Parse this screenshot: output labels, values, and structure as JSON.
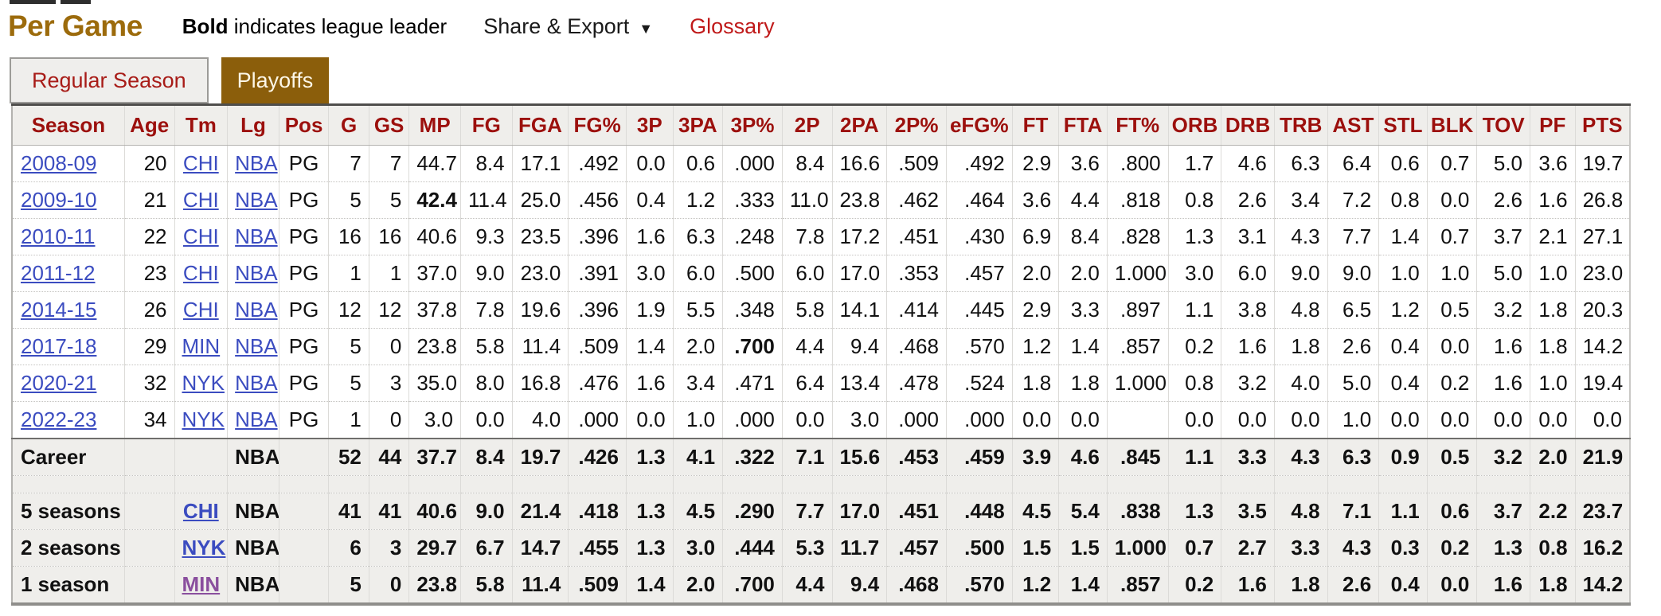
{
  "page": {
    "title": "Per Game",
    "note": {
      "bold": "Bold",
      "rest": " indicates league leader"
    },
    "share_export": {
      "label": "Share & Export",
      "caret": "▼"
    },
    "glossary": "Glossary"
  },
  "tabs": {
    "regular_season": {
      "label": "Regular Season",
      "active": false
    },
    "playoffs": {
      "label": "Playoffs",
      "active": true
    }
  },
  "colors": {
    "title_gold": "#9c6b0c",
    "playoffs_tab_brown": "#8b5e0b",
    "header_red": "#9c100d",
    "tab_text_red": "#a81c18",
    "glossary_red": "#c01a1a",
    "link_blue": "#3b4cc0",
    "link_visited_purple": "#8a4f9e",
    "row_gray": "#efeeeb"
  },
  "table": {
    "columns": [
      "Season",
      "Age",
      "Tm",
      "Lg",
      "Pos",
      "G",
      "GS",
      "MP",
      "FG",
      "FGA",
      "FG%",
      "3P",
      "3PA",
      "3P%",
      "2P",
      "2PA",
      "2P%",
      "eFG%",
      "FT",
      "FTA",
      "FT%",
      "ORB",
      "DRB",
      "TRB",
      "AST",
      "STL",
      "BLK",
      "TOV",
      "PF",
      "PTS"
    ],
    "rows": [
      {
        "type": "data",
        "cells": [
          {
            "t": "2008-09",
            "link": "blue"
          },
          "20",
          {
            "t": "CHI",
            "link": "blue"
          },
          {
            "t": "NBA",
            "link": "blue"
          },
          "PG",
          "7",
          "7",
          "44.7",
          "8.4",
          "17.1",
          ".492",
          "0.0",
          "0.6",
          ".000",
          "8.4",
          "16.6",
          ".509",
          ".492",
          "2.9",
          "3.6",
          ".800",
          "1.7",
          "4.6",
          "6.3",
          "6.4",
          "0.6",
          "0.7",
          "5.0",
          "3.6",
          "19.7"
        ]
      },
      {
        "type": "data",
        "cells": [
          {
            "t": "2009-10",
            "link": "blue"
          },
          "21",
          {
            "t": "CHI",
            "link": "blue"
          },
          {
            "t": "NBA",
            "link": "blue"
          },
          "PG",
          "5",
          "5",
          {
            "t": "42.4",
            "b": 1
          },
          "11.4",
          "25.0",
          ".456",
          "0.4",
          "1.2",
          ".333",
          "11.0",
          "23.8",
          ".462",
          ".464",
          "3.6",
          "4.4",
          ".818",
          "0.8",
          "2.6",
          "3.4",
          "7.2",
          "0.8",
          "0.0",
          "2.6",
          "1.6",
          "26.8"
        ]
      },
      {
        "type": "data",
        "cells": [
          {
            "t": "2010-11",
            "link": "blue"
          },
          "22",
          {
            "t": "CHI",
            "link": "blue"
          },
          {
            "t": "NBA",
            "link": "blue"
          },
          "PG",
          "16",
          "16",
          "40.6",
          "9.3",
          "23.5",
          ".396",
          "1.6",
          "6.3",
          ".248",
          "7.8",
          "17.2",
          ".451",
          ".430",
          "6.9",
          "8.4",
          ".828",
          "1.3",
          "3.1",
          "4.3",
          "7.7",
          "1.4",
          "0.7",
          "3.7",
          "2.1",
          "27.1"
        ]
      },
      {
        "type": "data",
        "cells": [
          {
            "t": "2011-12",
            "link": "blue"
          },
          "23",
          {
            "t": "CHI",
            "link": "blue"
          },
          {
            "t": "NBA",
            "link": "blue"
          },
          "PG",
          "1",
          "1",
          "37.0",
          "9.0",
          "23.0",
          ".391",
          "3.0",
          "6.0",
          ".500",
          "6.0",
          "17.0",
          ".353",
          ".457",
          "2.0",
          "2.0",
          "1.000",
          "3.0",
          "6.0",
          "9.0",
          "9.0",
          "1.0",
          "1.0",
          "5.0",
          "1.0",
          "23.0"
        ]
      },
      {
        "type": "data",
        "cells": [
          {
            "t": "2014-15",
            "link": "blue"
          },
          "26",
          {
            "t": "CHI",
            "link": "blue"
          },
          {
            "t": "NBA",
            "link": "blue"
          },
          "PG",
          "12",
          "12",
          "37.8",
          "7.8",
          "19.6",
          ".396",
          "1.9",
          "5.5",
          ".348",
          "5.8",
          "14.1",
          ".414",
          ".445",
          "2.9",
          "3.3",
          ".897",
          "1.1",
          "3.8",
          "4.8",
          "6.5",
          "1.2",
          "0.5",
          "3.2",
          "1.8",
          "20.3"
        ]
      },
      {
        "type": "data",
        "cells": [
          {
            "t": "2017-18",
            "link": "blue"
          },
          "29",
          {
            "t": "MIN",
            "link": "blue"
          },
          {
            "t": "NBA",
            "link": "blue"
          },
          "PG",
          "5",
          "0",
          "23.8",
          "5.8",
          "11.4",
          ".509",
          "1.4",
          "2.0",
          {
            "t": ".700",
            "b": 1
          },
          "4.4",
          "9.4",
          ".468",
          ".570",
          "1.2",
          "1.4",
          ".857",
          "0.2",
          "1.6",
          "1.8",
          "2.6",
          "0.4",
          "0.0",
          "1.6",
          "1.8",
          "14.2"
        ]
      },
      {
        "type": "data",
        "cells": [
          {
            "t": "2020-21",
            "link": "blue"
          },
          "32",
          {
            "t": "NYK",
            "link": "blue"
          },
          {
            "t": "NBA",
            "link": "blue"
          },
          "PG",
          "5",
          "3",
          "35.0",
          "8.0",
          "16.8",
          ".476",
          "1.6",
          "3.4",
          ".471",
          "6.4",
          "13.4",
          ".478",
          ".524",
          "1.8",
          "1.8",
          "1.000",
          "0.8",
          "3.2",
          "4.0",
          "5.0",
          "0.4",
          "0.2",
          "1.6",
          "1.0",
          "19.4"
        ]
      },
      {
        "type": "data",
        "cells": [
          {
            "t": "2022-23",
            "link": "blue"
          },
          "34",
          {
            "t": "NYK",
            "link": "blue"
          },
          {
            "t": "NBA",
            "link": "blue"
          },
          "PG",
          "1",
          "0",
          "3.0",
          "0.0",
          "4.0",
          ".000",
          "0.0",
          "1.0",
          ".000",
          "0.0",
          "3.0",
          ".000",
          ".000",
          "0.0",
          "0.0",
          "",
          "0.0",
          "0.0",
          "0.0",
          "1.0",
          "0.0",
          "0.0",
          "0.0",
          "0.0",
          "0.0"
        ]
      },
      {
        "type": "career",
        "cells": [
          "Career",
          "",
          "",
          "NBA",
          "",
          "52",
          "44",
          "37.7",
          "8.4",
          "19.7",
          ".426",
          "1.3",
          "4.1",
          ".322",
          "7.1",
          "15.6",
          ".453",
          ".459",
          "3.9",
          "4.6",
          ".845",
          "1.1",
          "3.3",
          "4.3",
          "6.3",
          "0.9",
          "0.5",
          "3.2",
          "2.0",
          "21.9"
        ]
      },
      {
        "type": "spacer"
      },
      {
        "type": "sum",
        "cells": [
          "5 seasons",
          "",
          {
            "t": "CHI",
            "link": "blue"
          },
          "NBA",
          "",
          "41",
          "41",
          "40.6",
          "9.0",
          "21.4",
          ".418",
          "1.3",
          "4.5",
          ".290",
          "7.7",
          "17.0",
          ".451",
          ".448",
          "4.5",
          "5.4",
          ".838",
          "1.3",
          "3.5",
          "4.8",
          "7.1",
          "1.1",
          "0.6",
          "3.7",
          "2.2",
          "23.7"
        ]
      },
      {
        "type": "sum",
        "cells": [
          "2 seasons",
          "",
          {
            "t": "NYK",
            "link": "blue"
          },
          "NBA",
          "",
          "6",
          "3",
          "29.7",
          "6.7",
          "14.7",
          ".455",
          "1.3",
          "3.0",
          ".444",
          "5.3",
          "11.7",
          ".457",
          ".500",
          "1.5",
          "1.5",
          "1.000",
          "0.7",
          "2.7",
          "3.3",
          "4.3",
          "0.3",
          "0.2",
          "1.3",
          "0.8",
          "16.2"
        ]
      },
      {
        "type": "sum",
        "cells": [
          "1 season",
          "",
          {
            "t": "MIN",
            "link": "visited"
          },
          "NBA",
          "",
          "5",
          "0",
          "23.8",
          "5.8",
          "11.4",
          ".509",
          "1.4",
          "2.0",
          ".700",
          "4.4",
          "9.4",
          ".468",
          ".570",
          "1.2",
          "1.4",
          ".857",
          "0.2",
          "1.6",
          "1.8",
          "2.6",
          "0.4",
          "0.0",
          "1.6",
          "1.8",
          "14.2"
        ]
      }
    ]
  }
}
